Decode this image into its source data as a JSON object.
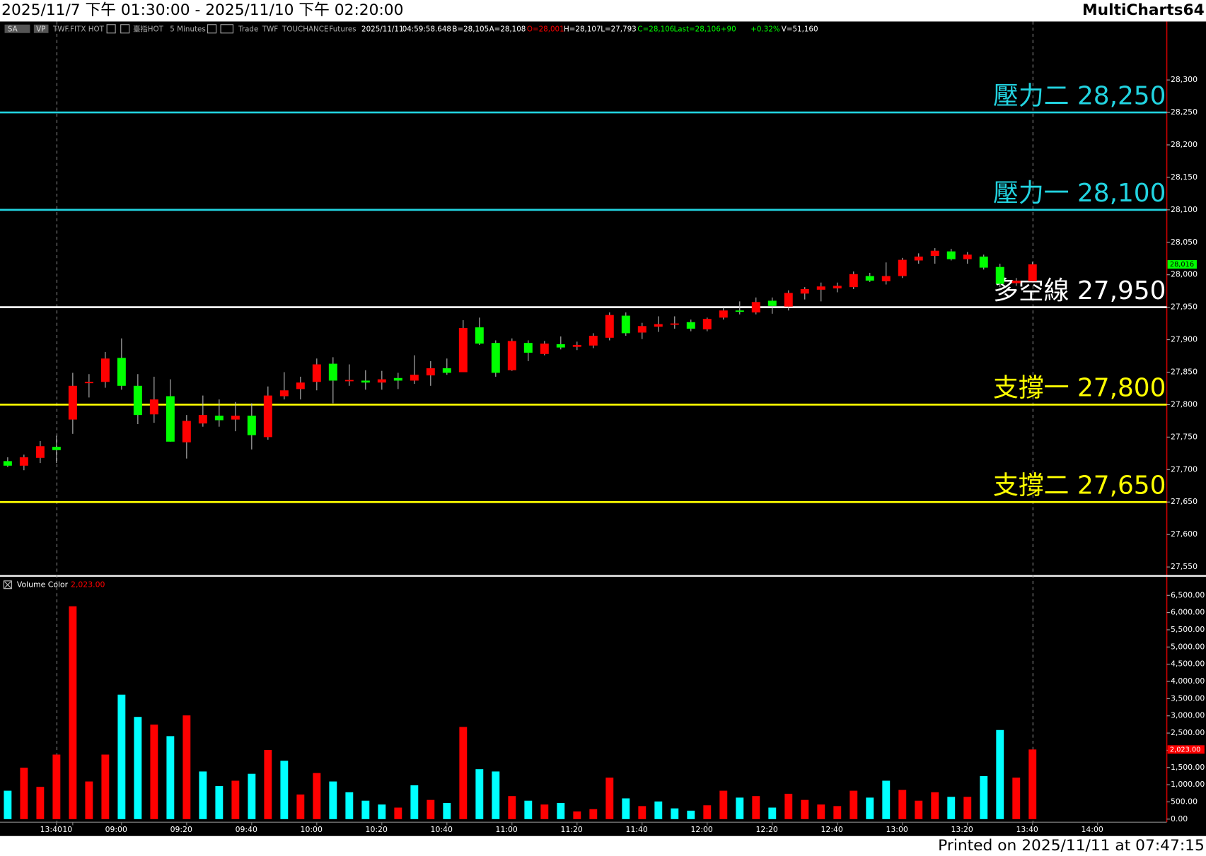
{
  "header": {
    "title": "2025/11/7 下午 01:30:00 - 2025/11/10 下午 02:20:00",
    "app": "MultiCharts64"
  },
  "info_bar": [
    {
      "text": "SA",
      "color": "#dddddd"
    },
    {
      "text": "VP",
      "color": "#dddddd"
    },
    {
      "text": "TWF.FITX HOT",
      "color": "#aaaaaa"
    },
    {
      "text": "臺指HOT",
      "color": "#aaaaaa"
    },
    {
      "text": "5 Minutes",
      "color": "#aaaaaa"
    },
    {
      "text": "Trade",
      "color": "#aaaaaa"
    },
    {
      "text": "TWF",
      "color": "#aaaaaa"
    },
    {
      "text": "TOUCHANCE",
      "color": "#aaaaaa"
    },
    {
      "text": "Futures",
      "color": "#aaaaaa"
    },
    {
      "text": "2025/11/11",
      "color": "#ffffff"
    },
    {
      "text": "04:59:58.648",
      "color": "#ffffff"
    },
    {
      "text": "B=28,105",
      "color": "#ffffff"
    },
    {
      "text": "A=28,108",
      "color": "#ffffff"
    },
    {
      "text": "O=28,001",
      "color": "#ff0000"
    },
    {
      "text": "H=28,107",
      "color": "#ffffff"
    },
    {
      "text": "L=27,793",
      "color": "#ffffff"
    },
    {
      "text": "C=28,106",
      "color": "#00ff00"
    },
    {
      "text": "Last=28,106",
      "color": "#00ff00"
    },
    {
      "text": "+90",
      "color": "#00ff00"
    },
    {
      "text": "+0.32%",
      "color": "#00ff00"
    },
    {
      "text": "V=51,160",
      "color": "#ffffff"
    }
  ],
  "footer": "Printed on 2025/11/11 at 07:47:15",
  "chart_data": [
    {
      "type": "candlestick",
      "open": [
        27713,
        27706,
        27718,
        27735,
        27777,
        27833,
        27835,
        27872,
        27829,
        27785,
        27813,
        27742,
        27771,
        27783,
        27777,
        27783,
        27750,
        27813,
        27824,
        27835,
        27863,
        27836,
        27837,
        27834,
        27841,
        27837,
        27845,
        27856,
        27850,
        27919,
        27895,
        27853,
        27895,
        27878,
        27893,
        27889,
        27891,
        27903,
        27937,
        27911,
        27920,
        27923,
        27927,
        27916,
        27934,
        27945,
        27942,
        27960,
        27951,
        27971,
        27977,
        27979,
        27981,
        27998,
        27990,
        27998,
        28022,
        28029,
        28036,
        28024,
        28028,
        28012,
        27987,
        27990,
        null,
        null,
        null,
        null
      ],
      "high": [
        27719,
        27723,
        27744,
        27752,
        27849,
        27847,
        27881,
        27902,
        27847,
        27843,
        27839,
        27784,
        27814,
        27808,
        27804,
        27802,
        27828,
        27850,
        27843,
        27871,
        27873,
        27862,
        27853,
        27852,
        27849,
        27876,
        27867,
        27871,
        27930,
        27934,
        27899,
        27902,
        27899,
        27898,
        27905,
        27897,
        27910,
        27942,
        27942,
        27926,
        27936,
        27936,
        27931,
        27934,
        27950,
        27959,
        27965,
        27965,
        27976,
        27981,
        27988,
        27988,
        28005,
        28003,
        28019,
        28026,
        28033,
        28041,
        28040,
        28035,
        28031,
        28017,
        27995,
        28020,
        null,
        null,
        null,
        null
      ],
      "low": [
        27704,
        27699,
        27710,
        27710,
        27755,
        27811,
        27826,
        27823,
        27770,
        27772,
        27743,
        27717,
        27766,
        27766,
        27759,
        27731,
        27746,
        27808,
        27808,
        27822,
        27802,
        27829,
        27823,
        27823,
        27824,
        27832,
        27829,
        27846,
        27850,
        27892,
        27843,
        27852,
        27867,
        27876,
        27885,
        27884,
        27887,
        27899,
        27906,
        27901,
        27912,
        27917,
        27913,
        27913,
        27931,
        27939,
        27939,
        27940,
        27945,
        27962,
        27959,
        27973,
        27978,
        27989,
        27985,
        27995,
        28017,
        28017,
        28022,
        28017,
        28008,
        27981,
        27983,
        27990,
        null,
        null,
        null,
        null
      ],
      "close": [
        27706,
        27719,
        27736,
        27730,
        27829,
        27835,
        27871,
        27829,
        27784,
        27808,
        27743,
        27775,
        27784,
        27776,
        27783,
        27753,
        27814,
        27822,
        27834,
        27862,
        27837,
        27838,
        27834,
        27839,
        27837,
        27846,
        27856,
        27849,
        27918,
        27894,
        27849,
        27898,
        27880,
        27894,
        27888,
        27892,
        27906,
        27938,
        27910,
        27921,
        27924,
        27925,
        27917,
        27932,
        27945,
        27943,
        27958,
        27952,
        27972,
        27978,
        27982,
        27983,
        28001,
        27991,
        27998,
        28023,
        28028,
        28037,
        28024,
        28031,
        28011,
        27986,
        27991,
        28016,
        null,
        null,
        null,
        null
      ],
      "up_color": "#ff0000",
      "down_color": "#00ff00",
      "ylim": [
        27538,
        28390
      ],
      "yticks": [
        {
          "value": 27550,
          "label": "27,550"
        },
        {
          "value": 27600,
          "label": "27,600"
        },
        {
          "value": 27650,
          "label": "27,650"
        },
        {
          "value": 27700,
          "label": "27,700"
        },
        {
          "value": 27750,
          "label": "27,750"
        },
        {
          "value": 27800,
          "label": "27,800"
        },
        {
          "value": 27850,
          "label": "27,850"
        },
        {
          "value": 27900,
          "label": "27,900"
        },
        {
          "value": 27950,
          "label": "27,950"
        },
        {
          "value": 28000,
          "label": "28,000"
        },
        {
          "value": 28050,
          "label": "28,050"
        },
        {
          "value": 28100,
          "label": "28,100"
        },
        {
          "value": 28150,
          "label": "28,150"
        },
        {
          "value": 28200,
          "label": "28,200"
        },
        {
          "value": 28250,
          "label": "28,250"
        },
        {
          "value": 28300,
          "label": "28,300"
        }
      ],
      "levels": [
        {
          "value": 28250,
          "label": "壓力二 28,250",
          "color": "#22d3e0"
        },
        {
          "value": 28100,
          "label": "壓力一 28,100",
          "color": "#22d3e0"
        },
        {
          "value": 27950,
          "label": "多空線 27,950",
          "color": "#ffffff"
        },
        {
          "value": 27800,
          "label": "支撐一 27,800",
          "color": "#ffff00"
        },
        {
          "value": 27650,
          "label": "支撐二 27,650",
          "color": "#ffff00"
        }
      ],
      "last_label": {
        "value": 28016,
        "label": "28,016"
      },
      "last_label_color": "#00ff00"
    },
    {
      "type": "bar",
      "legend": "Volume Color",
      "categories": [
        null,
        null,
        null,
        "13:40",
        "10",
        null,
        null,
        "09:00",
        null,
        null,
        null,
        "09:20",
        null,
        null,
        null,
        "09:40",
        null,
        null,
        null,
        "10:00",
        null,
        null,
        null,
        "10:20",
        null,
        null,
        null,
        "10:40",
        null,
        null,
        null,
        "11:00",
        null,
        null,
        null,
        "11:20",
        null,
        null,
        null,
        "11:40",
        null,
        null,
        null,
        "12:00",
        null,
        null,
        null,
        "12:20",
        null,
        null,
        null,
        "12:40",
        null,
        null,
        null,
        "13:00",
        null,
        null,
        null,
        "13:20",
        null,
        null,
        null,
        "13:40",
        null,
        null,
        null,
        "14:00"
      ],
      "values": [
        826,
        1495,
        937,
        1875,
        6183,
        1094,
        1875,
        3616,
        2969,
        2745,
        2411,
        3013,
        1384,
        960,
        1116,
        1317,
        2009,
        1696,
        714,
        1339,
        1094,
        781,
        536,
        424,
        335,
        982,
        558,
        469,
        2678,
        1451,
        1384,
        670,
        536,
        424,
        469,
        223,
        290,
        1205,
        603,
        379,
        513,
        312,
        246,
        402,
        826,
        625,
        670,
        335,
        737,
        558,
        424,
        379,
        826,
        625,
        1116,
        848,
        536,
        781,
        647,
        647,
        1250,
        2589,
        1205,
        2023,
        null,
        null,
        null,
        null
      ],
      "colors": [
        "#00ffff",
        "#ff0000",
        "#ff0000",
        "#ff0000",
        "#ff0000",
        "#ff0000",
        "#ff0000",
        "#00ffff",
        "#00ffff",
        "#ff0000",
        "#00ffff",
        "#ff0000",
        "#00ffff",
        "#00ffff",
        "#ff0000",
        "#00ffff",
        "#ff0000",
        "#00ffff",
        "#ff0000",
        "#ff0000",
        "#00ffff",
        "#00ffff",
        "#00ffff",
        "#00ffff",
        "#ff0000",
        "#00ffff",
        "#ff0000",
        "#00ffff",
        "#ff0000",
        "#00ffff",
        "#00ffff",
        "#ff0000",
        "#00ffff",
        "#ff0000",
        "#00ffff",
        "#ff0000",
        "#ff0000",
        "#ff0000",
        "#00ffff",
        "#ff0000",
        "#00ffff",
        "#00ffff",
        "#00ffff",
        "#ff0000",
        "#ff0000",
        "#00ffff",
        "#ff0000",
        "#00ffff",
        "#ff0000",
        "#ff0000",
        "#ff0000",
        "#ff0000",
        "#ff0000",
        "#00ffff",
        "#00ffff",
        "#ff0000",
        "#ff0000",
        "#ff0000",
        "#00ffff",
        "#ff0000",
        "#00ffff",
        "#00ffff",
        "#ff0000",
        "#ff0000",
        null,
        null,
        null,
        null
      ],
      "ylim": [
        -89,
        7009
      ],
      "yticks": [
        {
          "value": 0,
          "label": "0.00"
        },
        {
          "value": 500,
          "label": "500.00"
        },
        {
          "value": 1000,
          "label": "1,000.00"
        },
        {
          "value": 1500,
          "label": "1,500.00"
        },
        {
          "value": 2000,
          "label": "2,000.00"
        },
        {
          "value": 2500,
          "label": "2,500.00"
        },
        {
          "value": 3000,
          "label": "3,000.00"
        },
        {
          "value": 3500,
          "label": "3,500.00"
        },
        {
          "value": 4000,
          "label": "4,000.00"
        },
        {
          "value": 4500,
          "label": "4,500.00"
        },
        {
          "value": 5000,
          "label": "5,000.00"
        },
        {
          "value": 5500,
          "label": "5,500.00"
        },
        {
          "value": 6000,
          "label": "6,000.00"
        },
        {
          "value": 6500,
          "label": "6,500.00"
        }
      ],
      "last_label": {
        "value": 2023,
        "label": "2,023.00"
      },
      "last_label_color": "#ff0000"
    }
  ]
}
